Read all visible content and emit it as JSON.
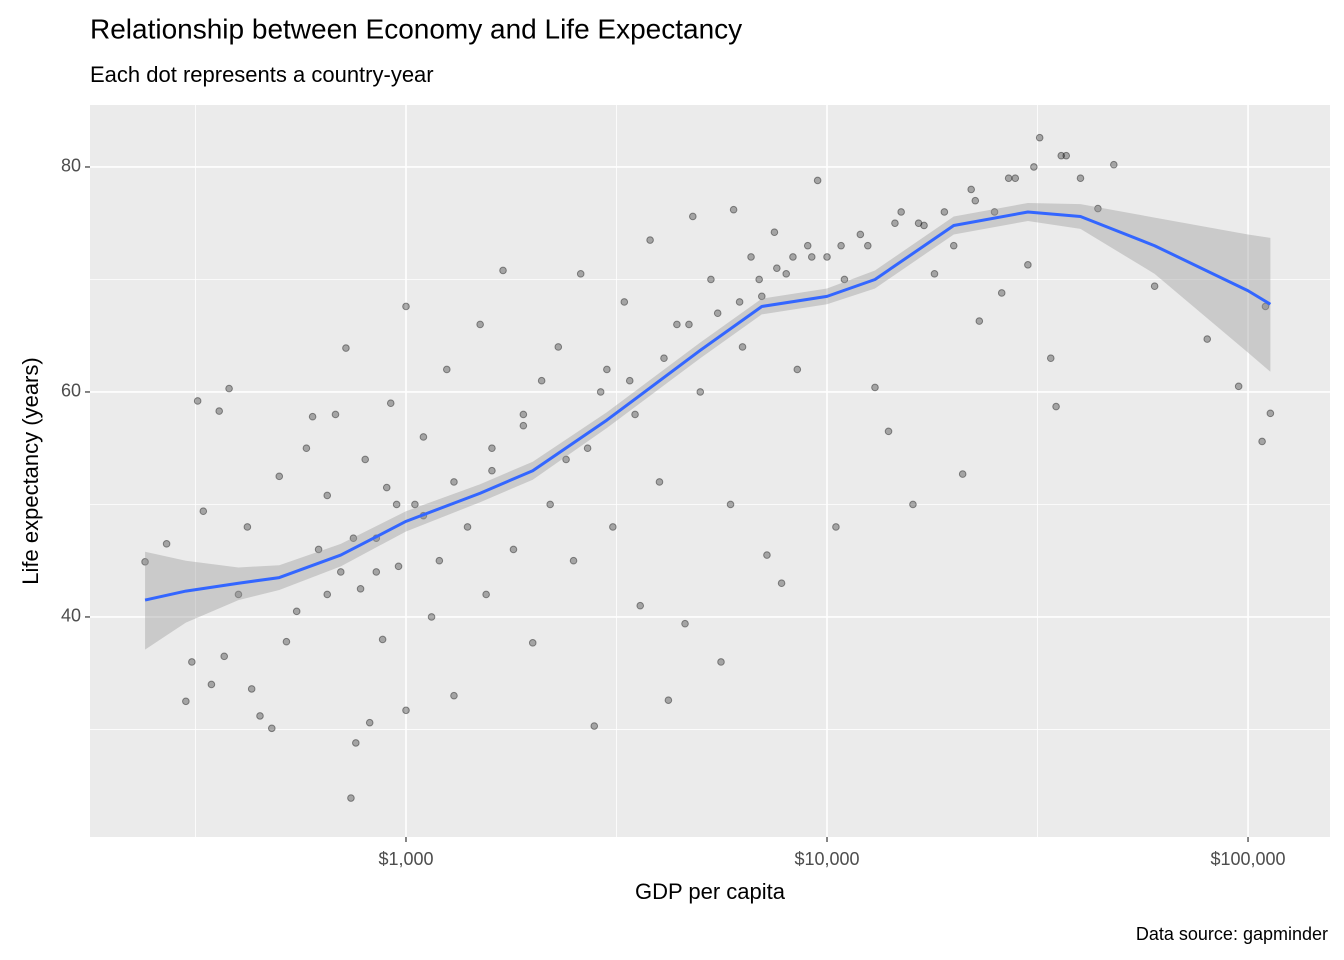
{
  "chart_data": {
    "type": "scatter",
    "title": "Relationship between Economy and Life Expectancy",
    "subtitle": "Each dot represents a country-year",
    "caption": "Data source: gapminder",
    "x_label": "GDP per capita",
    "y_label": "Life expectancy (years)",
    "x_scale": "log",
    "xlim": [
      177.6,
      156570
    ],
    "ylim": [
      20.44,
      85.51
    ],
    "xticks": [
      {
        "value": 1000,
        "label": "$1,000"
      },
      {
        "value": 10000,
        "label": "$10,000"
      },
      {
        "value": 100000,
        "label": "$100,000"
      }
    ],
    "x_minor_ticks": [
      316.2,
      3162.3,
      31622.8
    ],
    "yticks": [
      40,
      60,
      80
    ],
    "y_minor_ticks": [
      30,
      50,
      70
    ],
    "grid": true,
    "point_color": "#000000",
    "point_alpha": 0.3,
    "x": [
      240,
      270,
      300,
      310,
      320,
      330,
      345,
      360,
      380,
      370,
      400,
      420,
      430,
      450,
      480,
      500,
      520,
      550,
      580,
      600,
      620,
      650,
      680,
      700,
      720,
      740,
      760,
      780,
      800,
      820,
      850,
      880,
      900,
      920,
      960,
      1000,
      1000,
      1050,
      1100,
      1150,
      1200,
      1250,
      1300,
      1400,
      1500,
      1550,
      1600,
      1700,
      1800,
      1900,
      2000,
      2100,
      2200,
      2300,
      2500,
      2600,
      2700,
      2800,
      3000,
      3100,
      3300,
      3500,
      3600,
      3800,
      4000,
      4200,
      4400,
      4600,
      4800,
      5000,
      5300,
      5600,
      5900,
      6000,
      6300,
      6600,
      7000,
      7200,
      7500,
      7800,
      8000,
      8500,
      9000,
      9500,
      10000,
      10500,
      11000,
      12000,
      13000,
      14000,
      15000,
      16000,
      17000,
      18000,
      20000,
      21000,
      22000,
      23000,
      25000,
      26000,
      28000,
      30000,
      32000,
      34000,
      35000,
      37000,
      40000,
      44000,
      48000,
      60000,
      80000,
      95000,
      108000,
      110000,
      113000,
      650,
      750,
      850,
      950,
      1100,
      1300,
      1600,
      1900,
      2400,
      2900,
      3400,
      4100,
      4700,
      5500,
      6200,
      6900,
      7600,
      8300,
      9200,
      10800,
      12500,
      14500,
      16500,
      19000,
      22500,
      27000,
      31000,
      36000
    ],
    "values": [
      44.9,
      46.5,
      32.5,
      36,
      59.2,
      49.4,
      34,
      58.3,
      60.3,
      36.5,
      42,
      48,
      33.6,
      31.2,
      30.1,
      52.5,
      37.8,
      40.5,
      55,
      57.8,
      46,
      50.8,
      58,
      44,
      63.9,
      23.9,
      28.8,
      42.5,
      54,
      30.6,
      47,
      38,
      51.5,
      59,
      44.5,
      31.7,
      67.6,
      50,
      56,
      40,
      45,
      62,
      33,
      48,
      66,
      42,
      53,
      70.8,
      46,
      58,
      37.7,
      61,
      50,
      64,
      45,
      70.5,
      55,
      30.3,
      62,
      48,
      68,
      58,
      41,
      73.5,
      52,
      32.6,
      66,
      39.4,
      75.6,
      60,
      70,
      36,
      50,
      76.2,
      64,
      72,
      68.5,
      45.5,
      74.2,
      43,
      70.5,
      62,
      73,
      78.8,
      72,
      48,
      70,
      74,
      60.4,
      56.5,
      76,
      50,
      74.8,
      70.5,
      73,
      52.7,
      78,
      66.3,
      76,
      68.8,
      79,
      71.3,
      82.6,
      63,
      58.7,
      81,
      79,
      76.3,
      80.2,
      69.4,
      64.7,
      60.5,
      55.6,
      67.6,
      58.1,
      42,
      47,
      44,
      50,
      49,
      52,
      55,
      57,
      54,
      60,
      61,
      63,
      66,
      67,
      68,
      70,
      71,
      72,
      72,
      73,
      73,
      75,
      75,
      76,
      77,
      79,
      80,
      81
    ],
    "smooth": {
      "color": "#3366ff",
      "band_color": "#999999",
      "x": [
        240,
        300,
        400,
        500,
        700,
        1000,
        1500,
        2000,
        3000,
        5000,
        7000,
        10000,
        13000,
        20000,
        30000,
        40000,
        60000,
        100000,
        113000
      ],
      "values": [
        41.5,
        42.3,
        43,
        43.5,
        45.5,
        48.5,
        51,
        53,
        57.5,
        63.7,
        67.6,
        68.5,
        70,
        74.8,
        76,
        75.6,
        73,
        69,
        67.8
      ],
      "lower": [
        37.1,
        39.5,
        41.5,
        42.4,
        44.5,
        47.6,
        50.2,
        52.2,
        56.8,
        63,
        66.9,
        67.8,
        69.2,
        74,
        75.2,
        74.5,
        70.5,
        63.5,
        61.8
      ],
      "upper": [
        45.8,
        45,
        44.4,
        44.6,
        46.5,
        49.4,
        51.8,
        53.8,
        58.2,
        64.4,
        68.3,
        69.2,
        70.8,
        75.6,
        76.8,
        76.7,
        75.5,
        74,
        73.7
      ]
    }
  }
}
